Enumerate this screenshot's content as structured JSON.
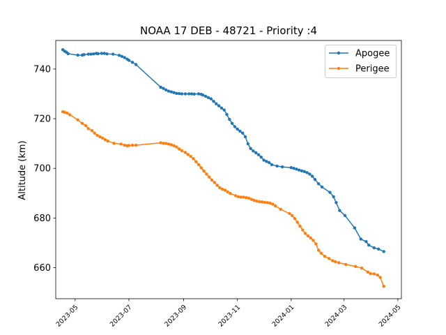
{
  "chart_data": {
    "type": "line",
    "title": "NOAA 17 DEB - 48721 - Priority :4",
    "xlabel": "",
    "ylabel": "Altitude (km)",
    "xlim": [
      "2023-04-09",
      "2024-05-05"
    ],
    "ylim": [
      647.5,
      751.5
    ],
    "xticks": [
      "2023-05",
      "2023-07",
      "2023-09",
      "2023-11",
      "2024-01",
      "2024-03",
      "2024-05"
    ],
    "xtick_dates": [
      "2023-05-01",
      "2023-07-01",
      "2023-09-01",
      "2023-11-01",
      "2024-01-01",
      "2024-03-01",
      "2024-05-01"
    ],
    "yticks": [
      660,
      680,
      700,
      720,
      740
    ],
    "legend": "top-right",
    "colors": {
      "Apogee": "#1f77b4",
      "Perigee": "#ff7f0e"
    },
    "series": [
      {
        "name": "Apogee",
        "x": [
          "2023-04-17",
          "2023-04-19",
          "2023-04-21",
          "2023-04-23",
          "2023-05-04",
          "2023-05-09",
          "2023-05-11",
          "2023-05-16",
          "2023-05-19",
          "2023-05-22",
          "2023-05-25",
          "2023-05-27",
          "2023-05-31",
          "2023-06-03",
          "2023-06-06",
          "2023-06-13",
          "2023-06-20",
          "2023-06-23",
          "2023-06-26",
          "2023-06-29",
          "2023-07-01",
          "2023-07-05",
          "2023-07-09",
          "2023-08-06",
          "2023-08-09",
          "2023-08-12",
          "2023-08-15",
          "2023-08-18",
          "2023-08-21",
          "2023-08-24",
          "2023-08-27",
          "2023-08-30",
          "2023-09-03",
          "2023-09-07",
          "2023-09-10",
          "2023-09-13",
          "2023-09-18",
          "2023-09-21",
          "2023-09-23",
          "2023-09-26",
          "2023-09-29",
          "2023-10-02",
          "2023-10-05",
          "2023-10-08",
          "2023-10-11",
          "2023-10-14",
          "2023-10-17",
          "2023-10-20",
          "2023-10-23",
          "2023-10-26",
          "2023-10-29",
          "2023-11-01",
          "2023-11-04",
          "2023-11-07",
          "2023-11-10",
          "2023-11-13",
          "2023-11-16",
          "2023-11-19",
          "2023-11-22",
          "2023-11-25",
          "2023-11-28",
          "2023-12-01",
          "2023-12-04",
          "2023-12-07",
          "2023-12-10",
          "2023-12-16",
          "2023-12-22",
          "2024-01-01",
          "2024-01-04",
          "2024-01-07",
          "2024-01-10",
          "2024-01-13",
          "2024-01-16",
          "2024-01-19",
          "2024-01-22",
          "2024-01-25",
          "2024-01-28",
          "2024-02-01",
          "2024-02-05",
          "2024-02-14",
          "2024-02-18",
          "2024-02-21",
          "2024-02-25",
          "2024-03-02",
          "2024-03-13",
          "2024-03-20",
          "2024-03-26",
          "2024-03-29",
          "2024-04-04",
          "2024-04-09",
          "2024-04-15"
        ],
        "values": [
          747.8,
          747.2,
          746.8,
          746.2,
          745.6,
          745.6,
          745.8,
          746.0,
          746.0,
          746.1,
          746.3,
          746.2,
          746.3,
          746.3,
          746.1,
          746.0,
          745.5,
          745.1,
          744.6,
          744.0,
          743.5,
          742.7,
          741.8,
          732.7,
          732.2,
          731.6,
          731.1,
          730.8,
          730.5,
          730.2,
          730.1,
          730.0,
          730.0,
          730.0,
          730.0,
          729.9,
          730.0,
          729.8,
          729.5,
          729.0,
          728.5,
          728.0,
          727.0,
          726.0,
          725.2,
          724.3,
          723.5,
          721.7,
          719.7,
          718.1,
          716.8,
          715.8,
          715.0,
          714.2,
          712.7,
          709.9,
          708.0,
          707.0,
          706.3,
          705.5,
          704.5,
          703.3,
          702.8,
          702.3,
          701.5,
          700.9,
          700.6,
          700.3,
          700.0,
          699.7,
          699.3,
          699.0,
          698.7,
          698.3,
          697.7,
          696.8,
          695.5,
          693.8,
          692.5,
          690.3,
          688.6,
          686.2,
          683.0,
          681.0,
          676.0,
          671.5,
          670.5,
          669.1,
          668.0,
          667.5,
          666.5
        ]
      },
      {
        "name": "Perigee",
        "x": [
          "2023-04-17",
          "2023-04-19",
          "2023-04-22",
          "2023-04-25",
          "2023-05-04",
          "2023-05-09",
          "2023-05-13",
          "2023-05-16",
          "2023-05-20",
          "2023-05-23",
          "2023-05-26",
          "2023-05-29",
          "2023-06-01",
          "2023-06-04",
          "2023-06-07",
          "2023-06-14",
          "2023-06-22",
          "2023-06-26",
          "2023-06-29",
          "2023-07-01",
          "2023-07-05",
          "2023-07-09",
          "2023-08-06",
          "2023-08-09",
          "2023-08-12",
          "2023-08-15",
          "2023-08-18",
          "2023-08-21",
          "2023-08-24",
          "2023-08-27",
          "2023-08-30",
          "2023-09-03",
          "2023-09-06",
          "2023-09-09",
          "2023-09-12",
          "2023-09-15",
          "2023-09-18",
          "2023-09-21",
          "2023-09-24",
          "2023-09-27",
          "2023-09-30",
          "2023-10-03",
          "2023-10-06",
          "2023-10-09",
          "2023-10-12",
          "2023-10-15",
          "2023-10-18",
          "2023-10-21",
          "2023-10-24",
          "2023-10-30",
          "2023-11-02",
          "2023-11-05",
          "2023-11-08",
          "2023-11-11",
          "2023-11-14",
          "2023-11-17",
          "2023-11-20",
          "2023-11-23",
          "2023-11-26",
          "2023-11-29",
          "2023-12-02",
          "2023-12-05",
          "2023-12-08",
          "2023-12-11",
          "2023-12-14",
          "2023-12-20",
          "2023-12-30",
          "2024-01-02",
          "2024-01-05",
          "2024-01-08",
          "2024-01-11",
          "2024-01-14",
          "2024-01-17",
          "2024-01-20",
          "2024-01-23",
          "2024-01-26",
          "2024-01-29",
          "2024-02-01",
          "2024-02-04",
          "2024-02-08",
          "2024-02-13",
          "2024-02-17",
          "2024-02-20",
          "2024-02-24",
          "2024-03-03",
          "2024-03-14",
          "2024-03-21",
          "2024-03-28",
          "2024-03-31",
          "2024-04-04",
          "2024-04-08",
          "2024-04-11",
          "2024-04-15"
        ],
        "values": [
          722.8,
          722.6,
          722.3,
          721.6,
          719.5,
          718.1,
          717.2,
          716.0,
          715.2,
          714.2,
          713.3,
          712.7,
          712.2,
          711.5,
          711.0,
          710.1,
          709.8,
          709.3,
          709.1,
          709.2,
          709.3,
          709.3,
          710.3,
          710.1,
          710.0,
          709.8,
          709.5,
          709.1,
          708.6,
          707.8,
          707.1,
          706.4,
          705.6,
          704.8,
          703.9,
          702.7,
          701.5,
          700.2,
          698.9,
          697.7,
          696.5,
          695.3,
          694.3,
          693.2,
          692.2,
          691.6,
          691.2,
          690.5,
          689.9,
          689.0,
          688.6,
          688.4,
          688.4,
          688.2,
          688.0,
          687.5,
          687.1,
          686.8,
          686.6,
          686.5,
          686.3,
          686.2,
          686.0,
          685.6,
          684.9,
          683.5,
          681.8,
          681.0,
          679.8,
          678.3,
          676.7,
          675.2,
          673.8,
          672.8,
          672.0,
          671.0,
          669.6,
          667.0,
          665.8,
          664.6,
          663.7,
          662.8,
          662.4,
          662.0,
          661.3,
          660.5,
          659.8,
          658.2,
          657.6,
          657.5,
          657.0,
          656.1,
          652.5
        ]
      }
    ]
  }
}
